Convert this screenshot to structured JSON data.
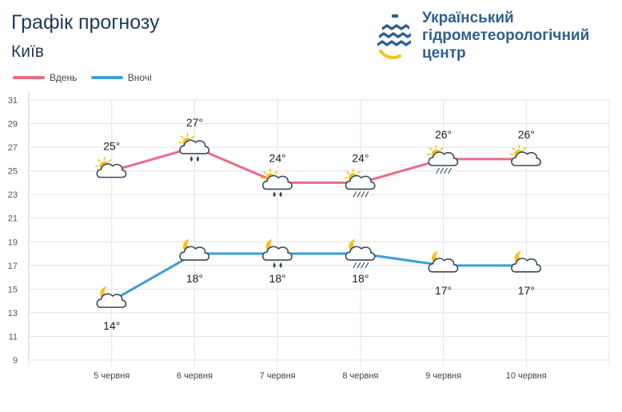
{
  "header": {
    "title": "Графік прогнозу",
    "city": "Київ",
    "logo_text": "Український\nгідрометеорологічний\nцентр"
  },
  "colors": {
    "day": "#ec6b86",
    "night": "#3e9ed8",
    "grid": "#e3e3e3",
    "text": "#333333"
  },
  "chart_data": {
    "type": "line",
    "categories": [
      "5 червня",
      "6 червня",
      "7 червня",
      "8 червня",
      "9 червня",
      "10 червня"
    ],
    "ylim": [
      9,
      31
    ],
    "yticks": [
      9,
      11,
      13,
      15,
      17,
      19,
      21,
      23,
      25,
      27,
      29,
      31
    ],
    "grid": true,
    "legend_placement": "top-left",
    "series": [
      {
        "name": "Вдень",
        "values": [
          25,
          27,
          24,
          24,
          26,
          26
        ],
        "labels": [
          "25°",
          "27°",
          "24°",
          "24°",
          "26°",
          "26°"
        ],
        "icons": [
          "sun-cloud-icon",
          "sun-cloud-rain-icon",
          "sun-cloud-rain-icon",
          "sun-cloud-drizzle-icon",
          "sun-cloud-drizzle-icon",
          "sun-cloud-icon"
        ]
      },
      {
        "name": "Вночі",
        "values": [
          14,
          18,
          18,
          18,
          17,
          17
        ],
        "labels": [
          "14°",
          "18°",
          "18°",
          "18°",
          "17°",
          "17°"
        ],
        "icons": [
          "moon-cloud-icon",
          "moon-cloud-icon",
          "moon-cloud-rain-icon",
          "moon-cloud-drizzle-icon",
          "moon-cloud-icon",
          "moon-cloud-icon"
        ]
      }
    ]
  }
}
